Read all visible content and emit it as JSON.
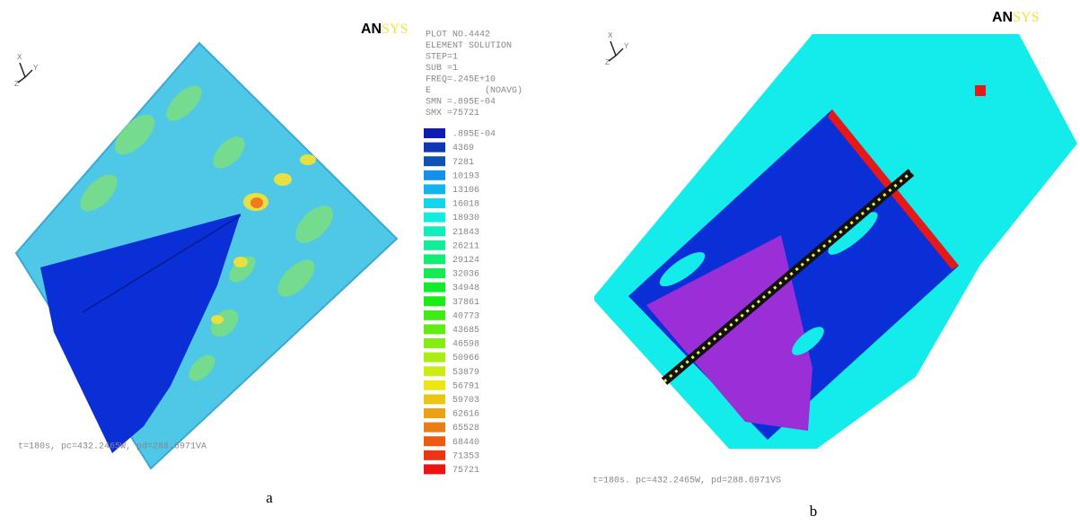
{
  "panels": [
    {
      "logo": {
        "bold": "AN",
        "light": "SYS"
      },
      "axes": {
        "x": "X",
        "y": "Y",
        "z": "Z"
      },
      "info": [
        "PLOT NO.4442",
        "ELEMENT SOLUTION",
        "STEP=1",
        "SUB =1",
        "FREQ=.245E+10",
        "E          (NOAVG)",
        "SMN =.895E-04",
        "SMX =75721"
      ],
      "legend": [
        ".895E-04",
        "4369",
        "7281",
        "10193",
        "13106",
        "16018",
        "18930",
        "21843",
        "26211",
        "29124",
        "32036",
        "34948",
        "37861",
        "40773",
        "43685",
        "46598",
        "50966",
        "53879",
        "56791",
        "59703",
        "62616",
        "65528",
        "68440",
        "71353",
        "75721"
      ],
      "footer": "t=180s, pc=432.2465W, pd=288.6971VA",
      "caption": "a"
    },
    {
      "logo": {
        "bold": "AN",
        "light": "SYS"
      },
      "axes": {
        "x": "X",
        "y": "Y",
        "z": "Z"
      },
      "footer": "t=180s. pc=432.2465W, pd=288.6971VS",
      "caption": "b"
    }
  ]
}
